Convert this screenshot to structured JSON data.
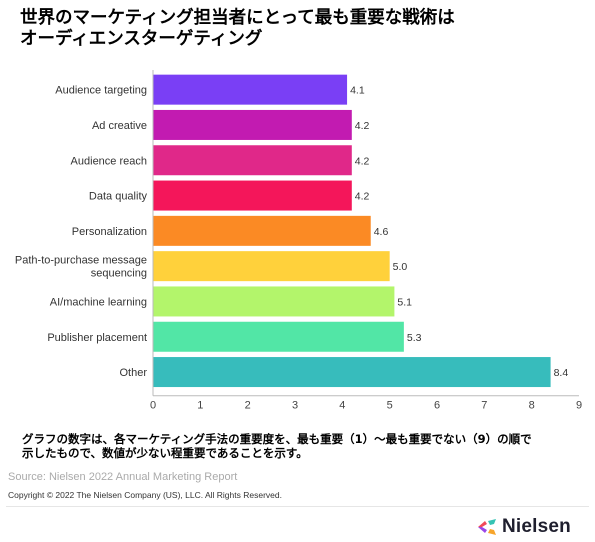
{
  "title": {
    "line1": "世界のマーケティング担当者にとって最も重要な戦術は",
    "line2": "オーディエンスターゲティング"
  },
  "chart_data": {
    "type": "bar",
    "orientation": "horizontal",
    "categories": [
      "Audience targeting",
      "Ad creative",
      "Audience reach",
      "Data quality",
      "Personalization",
      [
        "Path-to-purchase message",
        "sequencing"
      ],
      "AI/machine learning",
      "Publisher placement",
      "Other"
    ],
    "values": [
      4.1,
      4.2,
      4.2,
      4.2,
      4.6,
      5.0,
      5.1,
      5.3,
      8.4
    ],
    "value_labels": [
      "4.1",
      "4.2",
      "4.2",
      "4.2",
      "4.6",
      "5.0",
      "5.1",
      "5.3",
      "8.4"
    ],
    "colors": [
      "#7a3ff5",
      "#c21bb1",
      "#e02889",
      "#f4165a",
      "#fb8a24",
      "#ffd13b",
      "#b3f56b",
      "#52e6a6",
      "#37bcbc"
    ],
    "xlim": [
      0,
      9
    ],
    "xticks": [
      "0",
      "1",
      "2",
      "3",
      "4",
      "5",
      "6",
      "7",
      "8",
      "9"
    ],
    "grid": false
  },
  "note": {
    "line1": "グラフの数字は、各マーケティング手法の重要度を、最も重要（1）～最も重要でない（9）の順で",
    "line2": "示したもので、数値が少ない程重要であることを示す。"
  },
  "source": "Source: Nielsen 2022 Annual Marketing Report",
  "copyright": "Copyright © 2022 The Nielsen Company (US), LLC. All Rights Reserved.",
  "logo": {
    "text": "Nielsen",
    "icon": "nielsen-spark-icon"
  }
}
